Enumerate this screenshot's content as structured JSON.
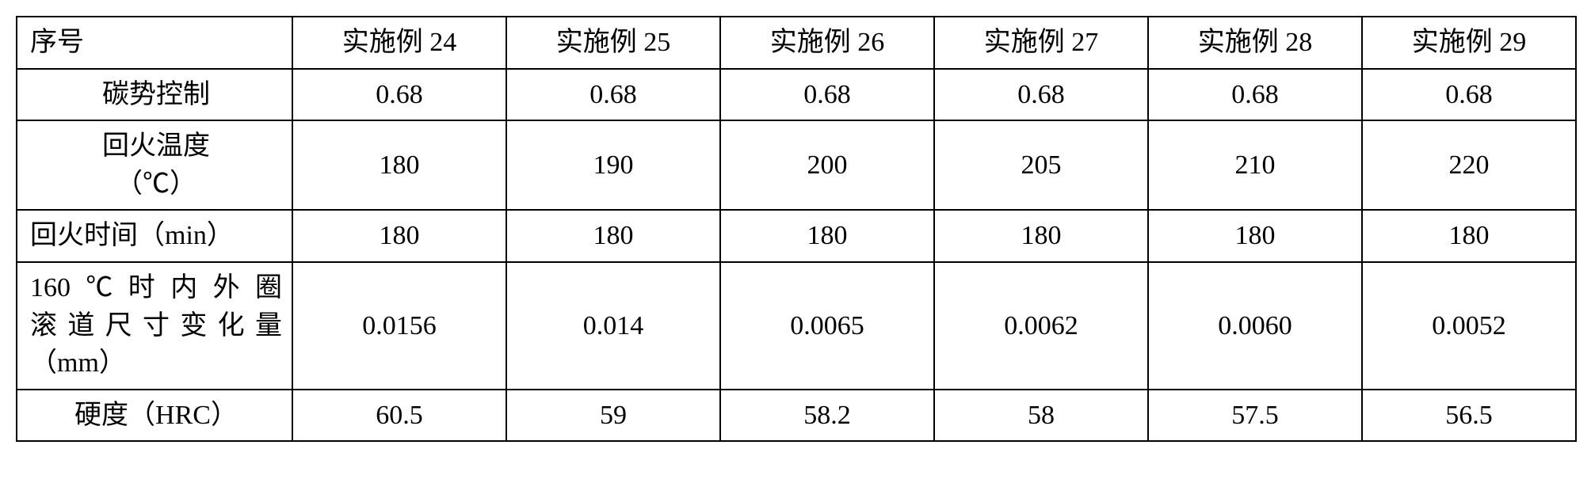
{
  "table": {
    "columns": [
      "序号",
      "实施例 24",
      "实施例 25",
      "实施例 26",
      "实施例 27",
      "实施例 28",
      "实施例 29"
    ],
    "rows": [
      {
        "label": "碳势控制",
        "label_align": "center",
        "values": [
          "0.68",
          "0.68",
          "0.68",
          "0.68",
          "0.68",
          "0.68"
        ]
      },
      {
        "label": "回火温度\n（℃）",
        "label_align": "center",
        "values": [
          "180",
          "190",
          "200",
          "205",
          "210",
          "220"
        ]
      },
      {
        "label": "回火时间（min）",
        "label_align": "left",
        "values": [
          "180",
          "180",
          "180",
          "180",
          "180",
          "180"
        ]
      },
      {
        "label": "160℃时内外圈滚道尺寸变化量（mm）",
        "label_align": "left",
        "label_lines": [
          "160℃时内外圈",
          "滚道尺寸变化量",
          "（mm）"
        ],
        "values": [
          "0.0156",
          "0.014",
          "0.0065",
          "0.0062",
          "0.0060",
          "0.0052"
        ]
      },
      {
        "label": "硬度（HRC）",
        "label_align": "center",
        "values": [
          "60.5",
          "59",
          "58.2",
          "58",
          "57.5",
          "56.5"
        ]
      }
    ],
    "border_color": "#000000",
    "background_color": "#ffffff",
    "font_size": 34,
    "col_widths": {
      "label": 348,
      "data": 270
    }
  }
}
